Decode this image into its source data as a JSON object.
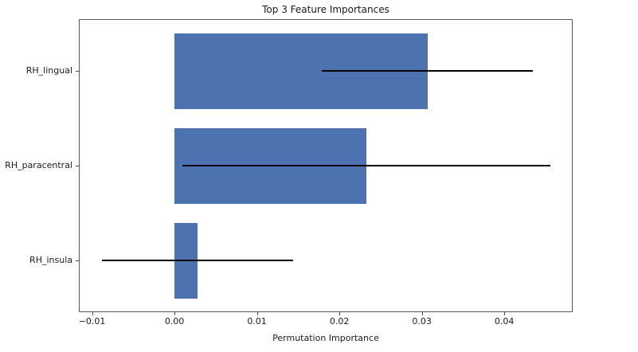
{
  "chart_data": {
    "type": "bar",
    "orientation": "horizontal",
    "title": "Top 3 Feature Importances",
    "xlabel": "Permutation Importance",
    "ylabel": "",
    "categories": [
      "RH_lingual",
      "RH_paracentral",
      "RH_insula"
    ],
    "values": [
      0.0307,
      0.0233,
      0.0028
    ],
    "errors": [
      0.0128,
      0.0223,
      0.0116
    ],
    "xticks": [
      -0.01,
      0.0,
      0.01,
      0.02,
      0.03,
      0.04
    ],
    "xtick_labels": [
      "−0.01",
      "0.00",
      "0.01",
      "0.02",
      "0.03",
      "0.04"
    ],
    "xlim": [
      -0.0116,
      0.0483
    ],
    "bar_color": "#4c72b0",
    "error_color": "#000000",
    "spine_color": "#5a5a5a",
    "background_color": "#ffffff",
    "grid": false,
    "legend": null
  }
}
